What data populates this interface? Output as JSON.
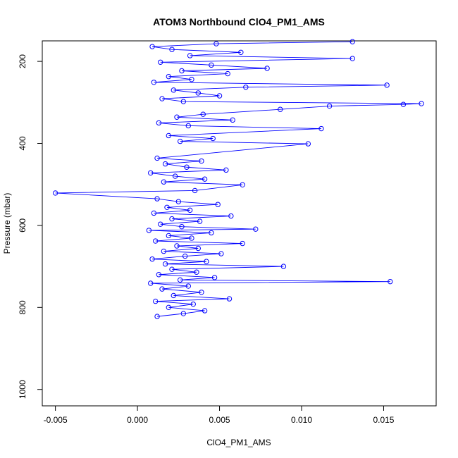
{
  "chart_data": {
    "type": "line",
    "title": "ATOM3 Northbound ClO4_PM1_AMS",
    "xlabel": "ClO4_PM1_AMS",
    "ylabel": "Pressure (mbar)",
    "xlim": [
      -0.0058,
      0.0182
    ],
    "ylim": [
      1040,
      150
    ],
    "y_reversed": true,
    "grid": false,
    "x_ticks": [
      -0.005,
      0.0,
      0.005,
      0.01,
      0.015
    ],
    "x_tick_labels": [
      "-0.005",
      "0.000",
      "0.005",
      "0.010",
      "0.015"
    ],
    "y_ticks": [
      200,
      400,
      600,
      800,
      1000
    ],
    "y_tick_labels": [
      "200",
      "400",
      "600",
      "800",
      "1000"
    ],
    "series_color": "#0000ff",
    "marker": "open-circle",
    "series": [
      {
        "points": [
          [
            0.0012,
            822
          ],
          [
            0.0028,
            815
          ],
          [
            0.0041,
            808
          ],
          [
            0.0019,
            800
          ],
          [
            0.0034,
            792
          ],
          [
            0.0011,
            785
          ],
          [
            0.0056,
            779
          ],
          [
            0.0022,
            771
          ],
          [
            0.0039,
            763
          ],
          [
            0.0015,
            755
          ],
          [
            0.0031,
            748
          ],
          [
            0.0008,
            741
          ],
          [
            0.0154,
            737
          ],
          [
            0.0026,
            733
          ],
          [
            0.0047,
            727
          ],
          [
            0.0013,
            720
          ],
          [
            0.0036,
            714
          ],
          [
            0.0021,
            707
          ],
          [
            0.0089,
            700
          ],
          [
            0.0017,
            694
          ],
          [
            0.0042,
            688
          ],
          [
            0.0009,
            682
          ],
          [
            0.0029,
            675
          ],
          [
            0.0051,
            669
          ],
          [
            0.0016,
            663
          ],
          [
            0.0037,
            656
          ],
          [
            0.0024,
            650
          ],
          [
            0.0064,
            644
          ],
          [
            0.0011,
            638
          ],
          [
            0.0033,
            631
          ],
          [
            0.0019,
            625
          ],
          [
            0.0045,
            618
          ],
          [
            0.0007,
            612
          ],
          [
            0.0072,
            609
          ],
          [
            0.0027,
            603
          ],
          [
            0.0014,
            597
          ],
          [
            0.0038,
            590
          ],
          [
            0.0021,
            584
          ],
          [
            0.0057,
            577
          ],
          [
            0.001,
            570
          ],
          [
            0.0032,
            563
          ],
          [
            0.0018,
            556
          ],
          [
            0.0049,
            549
          ],
          [
            0.0025,
            542
          ],
          [
            0.0012,
            535
          ],
          [
            -0.005,
            521
          ],
          [
            0.0035,
            515
          ],
          [
            0.0064,
            501
          ],
          [
            0.0016,
            494
          ],
          [
            0.0041,
            487
          ],
          [
            0.0023,
            480
          ],
          [
            0.0008,
            472
          ],
          [
            0.0054,
            465
          ],
          [
            0.003,
            458
          ],
          [
            0.0017,
            450
          ],
          [
            0.0039,
            443
          ],
          [
            0.0012,
            436
          ],
          [
            0.0104,
            401
          ],
          [
            0.0026,
            395
          ],
          [
            0.0046,
            388
          ],
          [
            0.0019,
            381
          ],
          [
            0.0112,
            364
          ],
          [
            0.0031,
            357
          ],
          [
            0.0013,
            350
          ],
          [
            0.0058,
            343
          ],
          [
            0.0024,
            336
          ],
          [
            0.004,
            329
          ],
          [
            0.0087,
            317
          ],
          [
            0.0117,
            309
          ],
          [
            0.0162,
            305
          ],
          [
            0.0173,
            303
          ],
          [
            0.0028,
            298
          ],
          [
            0.0015,
            291
          ],
          [
            0.005,
            284
          ],
          [
            0.0037,
            277
          ],
          [
            0.0022,
            270
          ],
          [
            0.0066,
            263
          ],
          [
            0.0152,
            258
          ],
          [
            0.001,
            251
          ],
          [
            0.0033,
            244
          ],
          [
            0.0019,
            237
          ],
          [
            0.0055,
            230
          ],
          [
            0.0027,
            223
          ],
          [
            0.0079,
            217
          ],
          [
            0.0045,
            209
          ],
          [
            0.0014,
            202
          ],
          [
            0.0131,
            193
          ],
          [
            0.0032,
            186
          ],
          [
            0.0063,
            178
          ],
          [
            0.0021,
            171
          ],
          [
            0.0009,
            164
          ],
          [
            0.0048,
            157
          ],
          [
            0.0131,
            152
          ]
        ]
      }
    ]
  }
}
